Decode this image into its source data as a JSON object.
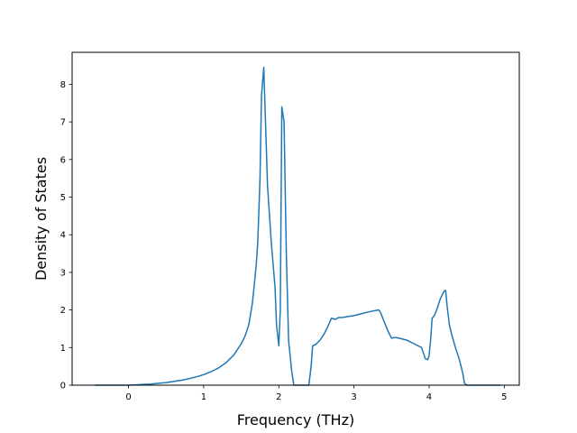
{
  "chart_data": {
    "type": "line",
    "title": "",
    "xlabel": "Frequency (THz)",
    "ylabel": "Density of States",
    "xlim": [
      -0.75,
      5.2
    ],
    "ylim": [
      0,
      8.85
    ],
    "xticks": [
      0,
      1,
      2,
      3,
      4,
      5
    ],
    "yticks": [
      0,
      1,
      2,
      3,
      4,
      5,
      6,
      7,
      8
    ],
    "grid": false,
    "legend": "none",
    "series": [
      {
        "color": "#1f77b4",
        "x": [
          -0.45,
          -0.3,
          -0.1,
          0.0,
          0.1,
          0.2,
          0.3,
          0.4,
          0.5,
          0.6,
          0.7,
          0.8,
          0.9,
          1.0,
          1.1,
          1.2,
          1.3,
          1.4,
          1.5,
          1.55,
          1.6,
          1.65,
          1.7,
          1.72,
          1.75,
          1.77,
          1.8,
          1.85,
          1.9,
          1.95,
          1.97,
          2.0,
          2.02,
          2.04,
          2.07,
          2.1,
          2.13,
          2.17,
          2.2,
          2.23,
          2.25,
          2.3,
          2.35,
          2.4,
          2.43,
          2.45,
          2.48,
          2.5,
          2.55,
          2.6,
          2.65,
          2.7,
          2.75,
          2.8,
          2.85,
          2.9,
          3.0,
          3.1,
          3.2,
          3.3,
          3.33,
          3.35,
          3.4,
          3.45,
          3.5,
          3.55,
          3.6,
          3.7,
          3.8,
          3.9,
          3.95,
          3.98,
          4.0,
          4.02,
          4.04,
          4.07,
          4.1,
          4.15,
          4.2,
          4.22,
          4.24,
          4.27,
          4.3,
          4.35,
          4.4,
          4.45,
          4.47,
          4.5,
          4.6,
          4.8,
          4.95
        ],
        "y": [
          0.0,
          0.0,
          0.0,
          0.0,
          0.01,
          0.02,
          0.03,
          0.05,
          0.07,
          0.1,
          0.13,
          0.17,
          0.22,
          0.28,
          0.36,
          0.46,
          0.6,
          0.8,
          1.1,
          1.3,
          1.6,
          2.2,
          3.2,
          3.8,
          5.5,
          7.7,
          8.45,
          5.3,
          3.8,
          2.6,
          1.6,
          1.05,
          2.0,
          7.4,
          7.0,
          3.5,
          1.2,
          0.4,
          0.0,
          0.0,
          0.0,
          0.0,
          0.0,
          0.0,
          0.5,
          1.05,
          1.07,
          1.1,
          1.2,
          1.35,
          1.55,
          1.78,
          1.75,
          1.8,
          1.8,
          1.82,
          1.85,
          1.9,
          1.95,
          1.99,
          2.0,
          1.95,
          1.7,
          1.45,
          1.25,
          1.27,
          1.25,
          1.2,
          1.1,
          1.0,
          0.7,
          0.68,
          0.78,
          1.2,
          1.78,
          1.85,
          2.0,
          2.3,
          2.5,
          2.52,
          2.1,
          1.6,
          1.35,
          1.0,
          0.7,
          0.3,
          0.05,
          0.0,
          0.0,
          0.0,
          0.0
        ]
      }
    ]
  }
}
